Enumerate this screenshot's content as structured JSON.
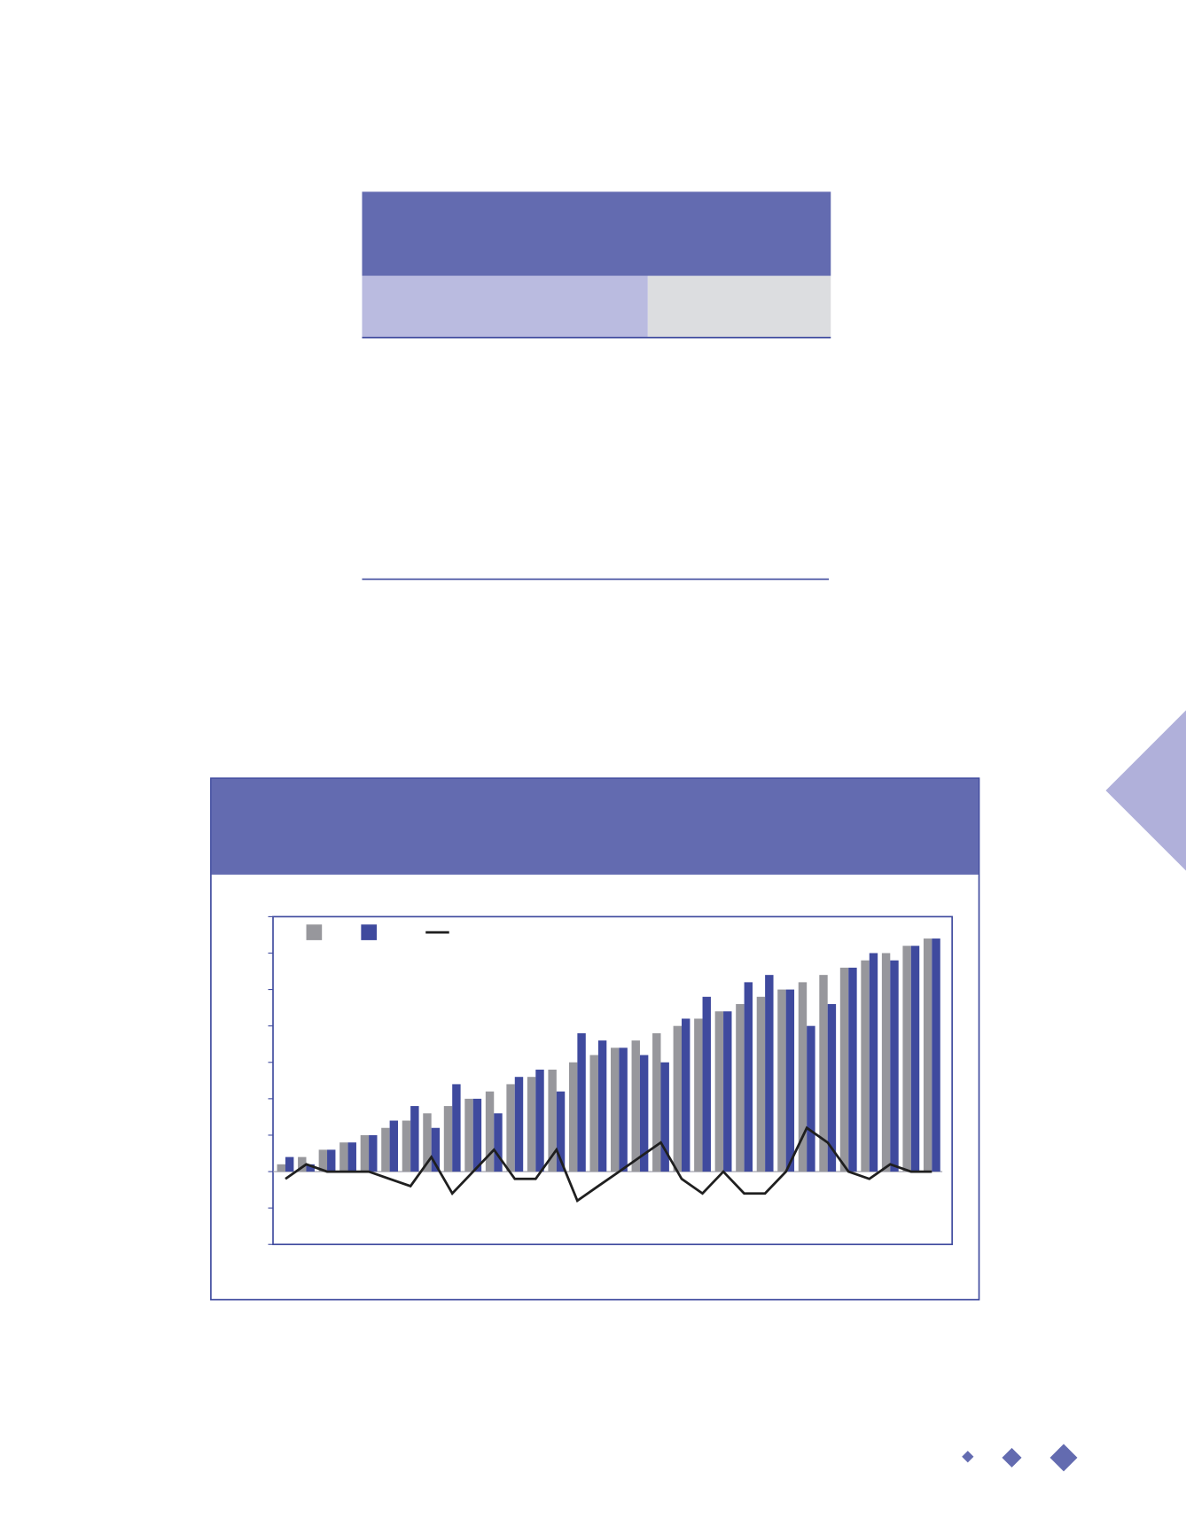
{
  "chart_data": {
    "type": "bar",
    "categories": [
      null,
      null,
      null,
      null,
      null,
      null,
      null,
      null,
      null,
      null,
      null,
      null,
      null,
      null,
      null,
      null,
      null,
      null,
      null,
      null,
      null,
      null,
      null,
      null,
      null,
      null,
      null,
      null,
      null,
      null,
      null,
      null
    ],
    "series": [
      {
        "color": "#97979c",
        "values": [
          0.2,
          0.4,
          0.6,
          0.8,
          1.0,
          1.2,
          1.4,
          1.6,
          1.8,
          2.0,
          2.2,
          2.4,
          2.6,
          2.8,
          3.0,
          3.2,
          3.4,
          3.6,
          3.8,
          4.0,
          4.2,
          4.4,
          4.6,
          4.8,
          5.0,
          5.2,
          5.4,
          5.6,
          5.8,
          6.0,
          6.2,
          6.4
        ]
      },
      {
        "color": "#3f4a9e",
        "values": [
          0.4,
          0.2,
          0.6,
          0.8,
          1.0,
          1.4,
          1.8,
          1.2,
          2.4,
          2.0,
          1.6,
          2.6,
          2.8,
          2.2,
          3.8,
          3.6,
          3.4,
          3.2,
          3.0,
          4.2,
          4.8,
          4.4,
          5.2,
          5.4,
          5.0,
          4.0,
          4.6,
          5.6,
          6.0,
          5.8,
          6.2,
          6.4
        ]
      },
      {
        "type": "line",
        "color": "#1f1f1f",
        "values": [
          -0.2,
          0.2,
          0,
          0,
          0,
          -0.2,
          -0.4,
          0.4,
          -0.6,
          0,
          0.6,
          -0.2,
          -0.2,
          0.6,
          -0.8,
          -0.4,
          0,
          0.4,
          0.8,
          -0.2,
          -0.6,
          0,
          -0.6,
          -0.6,
          0,
          1.2,
          0.8,
          0,
          -0.2,
          0.2,
          0,
          0
        ]
      }
    ],
    "ylim": [
      -2,
      7
    ],
    "yticks": [
      -2,
      -1,
      0,
      1,
      2,
      3,
      4,
      5,
      6,
      7
    ]
  }
}
